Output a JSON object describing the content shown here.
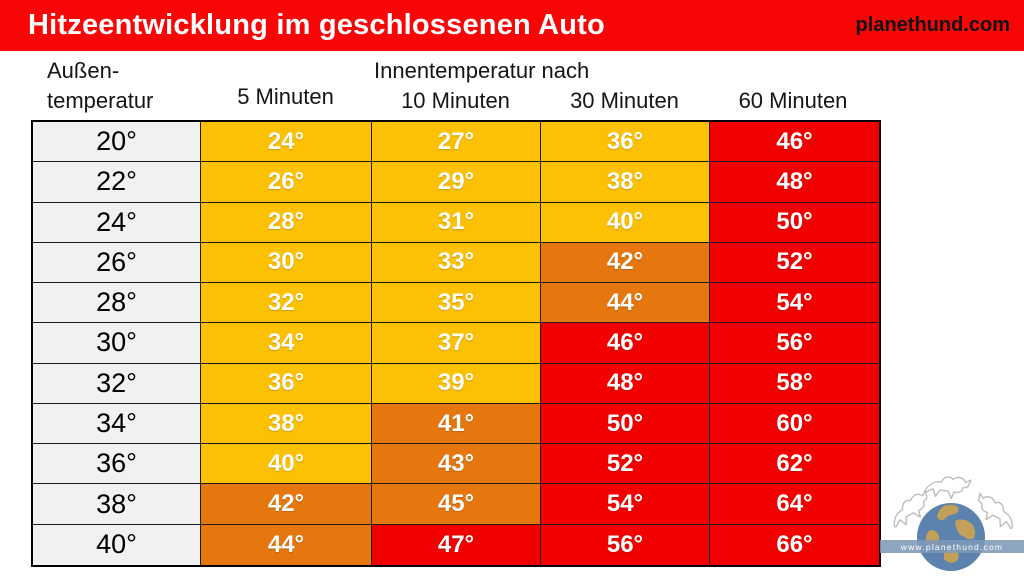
{
  "header": {
    "title": "Hitzeentwicklung im geschlossenen Auto",
    "site": "planethund.com",
    "bar_color": "#f80505"
  },
  "labels": {
    "row_header_line1": "Außen-",
    "row_header_line2": "temperatur",
    "group_header": "Innentemperatur nach",
    "column_headers": [
      "5 Minuten",
      "10 Minuten",
      "30 Minuten",
      "60 Minuten"
    ]
  },
  "table": {
    "palette": {
      "y": "#fdc103",
      "o": "#e5770e",
      "r": "#f20000",
      "gray": "#f1f1f1"
    },
    "rows": [
      {
        "out": "20°",
        "vals": [
          "24°",
          "27°",
          "36°",
          "46°"
        ],
        "cols": [
          "y",
          "y",
          "y",
          "r"
        ]
      },
      {
        "out": "22°",
        "vals": [
          "26°",
          "29°",
          "38°",
          "48°"
        ],
        "cols": [
          "y",
          "y",
          "y",
          "r"
        ]
      },
      {
        "out": "24°",
        "vals": [
          "28°",
          "31°",
          "40°",
          "50°"
        ],
        "cols": [
          "y",
          "y",
          "y",
          "r"
        ]
      },
      {
        "out": "26°",
        "vals": [
          "30°",
          "33°",
          "42°",
          "52°"
        ],
        "cols": [
          "y",
          "y",
          "o",
          "r"
        ]
      },
      {
        "out": "28°",
        "vals": [
          "32°",
          "35°",
          "44°",
          "54°"
        ],
        "cols": [
          "y",
          "y",
          "o",
          "r"
        ]
      },
      {
        "out": "30°",
        "vals": [
          "34°",
          "37°",
          "46°",
          "56°"
        ],
        "cols": [
          "y",
          "y",
          "r",
          "r"
        ]
      },
      {
        "out": "32°",
        "vals": [
          "36°",
          "39°",
          "48°",
          "58°"
        ],
        "cols": [
          "y",
          "y",
          "r",
          "r"
        ]
      },
      {
        "out": "34°",
        "vals": [
          "38°",
          "41°",
          "50°",
          "60°"
        ],
        "cols": [
          "y",
          "o",
          "r",
          "r"
        ]
      },
      {
        "out": "36°",
        "vals": [
          "40°",
          "43°",
          "52°",
          "62°"
        ],
        "cols": [
          "y",
          "o",
          "r",
          "r"
        ]
      },
      {
        "out": "38°",
        "vals": [
          "42°",
          "45°",
          "54°",
          "64°"
        ],
        "cols": [
          "o",
          "o",
          "r",
          "r"
        ]
      },
      {
        "out": "40°",
        "vals": [
          "44°",
          "47°",
          "56°",
          "66°"
        ],
        "cols": [
          "o",
          "r",
          "r",
          "r"
        ]
      }
    ]
  },
  "logo": {
    "banner_text": "www.planethund.com"
  },
  "chart_data": {
    "type": "heatmap",
    "title": "Hitzeentwicklung im geschlossenen Auto",
    "row_axis_label": "Außentemperatur",
    "column_group_label": "Innentemperatur nach",
    "columns": [
      "5 Minuten",
      "10 Minuten",
      "30 Minuten",
      "60 Minuten"
    ],
    "rows": [
      20,
      22,
      24,
      26,
      28,
      30,
      32,
      34,
      36,
      38,
      40
    ],
    "values": [
      [
        24,
        27,
        36,
        46
      ],
      [
        26,
        29,
        38,
        48
      ],
      [
        28,
        31,
        40,
        50
      ],
      [
        30,
        33,
        42,
        52
      ],
      [
        32,
        35,
        44,
        54
      ],
      [
        34,
        37,
        46,
        56
      ],
      [
        36,
        39,
        48,
        58
      ],
      [
        38,
        41,
        50,
        60
      ],
      [
        40,
        43,
        52,
        62
      ],
      [
        42,
        45,
        54,
        64
      ],
      [
        44,
        47,
        56,
        66
      ]
    ],
    "cell_severity": [
      [
        "yellow",
        "yellow",
        "yellow",
        "red"
      ],
      [
        "yellow",
        "yellow",
        "yellow",
        "red"
      ],
      [
        "yellow",
        "yellow",
        "yellow",
        "red"
      ],
      [
        "yellow",
        "yellow",
        "orange",
        "red"
      ],
      [
        "yellow",
        "yellow",
        "orange",
        "red"
      ],
      [
        "yellow",
        "yellow",
        "red",
        "red"
      ],
      [
        "yellow",
        "yellow",
        "red",
        "red"
      ],
      [
        "yellow",
        "orange",
        "red",
        "red"
      ],
      [
        "yellow",
        "orange",
        "red",
        "red"
      ],
      [
        "orange",
        "orange",
        "red",
        "red"
      ],
      [
        "orange",
        "red",
        "red",
        "red"
      ]
    ],
    "severity_colors": {
      "yellow": "#fdc103",
      "orange": "#e5770e",
      "red": "#f20000"
    },
    "unit": "°C (shown as °)"
  }
}
